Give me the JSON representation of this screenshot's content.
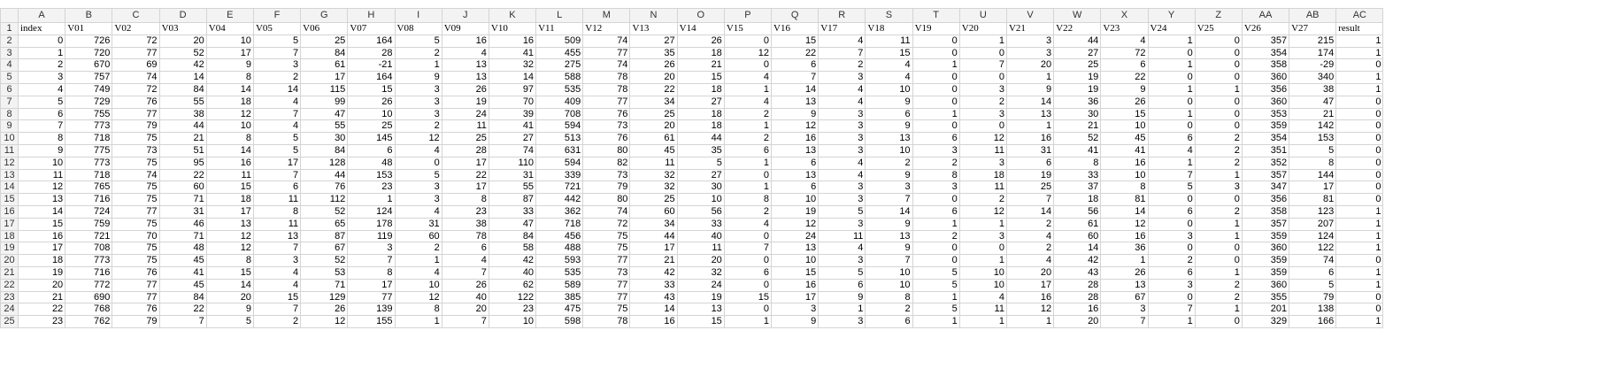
{
  "columns": [
    "A",
    "B",
    "C",
    "D",
    "E",
    "F",
    "G",
    "H",
    "I",
    "J",
    "K",
    "L",
    "M",
    "N",
    "O",
    "P",
    "Q",
    "R",
    "S",
    "T",
    "U",
    "V",
    "W",
    "X",
    "Y",
    "Z",
    "AA",
    "AB",
    "AC"
  ],
  "row_numbers": [
    1,
    2,
    3,
    4,
    5,
    6,
    7,
    8,
    9,
    10,
    11,
    12,
    13,
    14,
    15,
    16,
    17,
    18,
    19,
    20,
    21,
    22,
    23,
    24,
    25
  ],
  "header": [
    "index",
    "V01",
    "V02",
    "V03",
    "V04",
    "V05",
    "V06",
    "V07",
    "V08",
    "V09",
    "V10",
    "V11",
    "V12",
    "V13",
    "V14",
    "V15",
    "V16",
    "V17",
    "V18",
    "V19",
    "V20",
    "V21",
    "V22",
    "V23",
    "V24",
    "V25",
    "V26",
    "V27",
    "result"
  ],
  "rows": [
    [
      0,
      726,
      72,
      20,
      10,
      5,
      25,
      164,
      5,
      16,
      16,
      509,
      74,
      27,
      26,
      0,
      15,
      4,
      11,
      0,
      1,
      3,
      44,
      4,
      1,
      0,
      357,
      215,
      1
    ],
    [
      1,
      720,
      77,
      52,
      17,
      7,
      84,
      28,
      2,
      4,
      41,
      455,
      77,
      35,
      18,
      12,
      22,
      7,
      15,
      0,
      0,
      3,
      27,
      72,
      0,
      0,
      354,
      174,
      1
    ],
    [
      2,
      670,
      69,
      42,
      9,
      3,
      61,
      -21,
      1,
      13,
      32,
      275,
      74,
      26,
      21,
      0,
      6,
      2,
      4,
      1,
      7,
      20,
      25,
      6,
      1,
      0,
      358,
      -29,
      0
    ],
    [
      3,
      757,
      74,
      14,
      8,
      2,
      17,
      164,
      9,
      13,
      14,
      588,
      78,
      20,
      15,
      4,
      7,
      3,
      4,
      0,
      0,
      1,
      19,
      22,
      0,
      0,
      360,
      340,
      1
    ],
    [
      4,
      749,
      72,
      84,
      14,
      14,
      115,
      15,
      3,
      26,
      97,
      535,
      78,
      22,
      18,
      1,
      14,
      4,
      10,
      0,
      3,
      9,
      19,
      9,
      1,
      1,
      356,
      38,
      1
    ],
    [
      5,
      729,
      76,
      55,
      18,
      4,
      99,
      26,
      3,
      19,
      70,
      409,
      77,
      34,
      27,
      4,
      13,
      4,
      9,
      0,
      2,
      14,
      36,
      26,
      0,
      0,
      360,
      47,
      0
    ],
    [
      6,
      755,
      77,
      38,
      12,
      7,
      47,
      10,
      3,
      24,
      39,
      708,
      76,
      25,
      18,
      2,
      9,
      3,
      6,
      1,
      3,
      13,
      30,
      15,
      1,
      0,
      353,
      21,
      0
    ],
    [
      7,
      773,
      79,
      44,
      10,
      4,
      55,
      25,
      2,
      11,
      41,
      594,
      73,
      20,
      18,
      1,
      12,
      3,
      9,
      0,
      0,
      1,
      21,
      10,
      0,
      0,
      359,
      142,
      0
    ],
    [
      8,
      718,
      75,
      21,
      8,
      5,
      30,
      145,
      12,
      25,
      27,
      513,
      76,
      61,
      44,
      2,
      16,
      3,
      13,
      6,
      12,
      16,
      52,
      45,
      6,
      2,
      354,
      153,
      0
    ],
    [
      9,
      775,
      73,
      51,
      14,
      5,
      84,
      6,
      4,
      28,
      74,
      631,
      80,
      45,
      35,
      6,
      13,
      3,
      10,
      3,
      11,
      31,
      41,
      41,
      4,
      2,
      351,
      5,
      0
    ],
    [
      10,
      773,
      75,
      95,
      16,
      17,
      128,
      48,
      0,
      17,
      110,
      594,
      82,
      11,
      5,
      1,
      6,
      4,
      2,
      2,
      3,
      6,
      8,
      16,
      1,
      2,
      352,
      8,
      0
    ],
    [
      11,
      718,
      74,
      22,
      11,
      7,
      44,
      153,
      5,
      22,
      31,
      339,
      73,
      32,
      27,
      0,
      13,
      4,
      9,
      8,
      18,
      19,
      33,
      10,
      7,
      1,
      357,
      144,
      0
    ],
    [
      12,
      765,
      75,
      60,
      15,
      6,
      76,
      23,
      3,
      17,
      55,
      721,
      79,
      32,
      30,
      1,
      6,
      3,
      3,
      3,
      11,
      25,
      37,
      8,
      5,
      3,
      347,
      17,
      0
    ],
    [
      13,
      716,
      75,
      71,
      18,
      11,
      112,
      1,
      3,
      8,
      87,
      442,
      80,
      25,
      10,
      8,
      10,
      3,
      7,
      0,
      2,
      7,
      18,
      81,
      0,
      0,
      356,
      81,
      0
    ],
    [
      14,
      724,
      77,
      31,
      17,
      8,
      52,
      124,
      4,
      23,
      33,
      362,
      74,
      60,
      56,
      2,
      19,
      5,
      14,
      6,
      12,
      14,
      56,
      14,
      6,
      2,
      358,
      123,
      1
    ],
    [
      15,
      759,
      75,
      46,
      13,
      11,
      65,
      178,
      31,
      38,
      47,
      718,
      72,
      34,
      33,
      4,
      12,
      3,
      9,
      1,
      1,
      2,
      61,
      12,
      0,
      1,
      357,
      207,
      1
    ],
    [
      16,
      721,
      70,
      71,
      12,
      13,
      87,
      119,
      60,
      78,
      84,
      456,
      75,
      44,
      40,
      0,
      24,
      11,
      13,
      2,
      3,
      4,
      60,
      16,
      3,
      1,
      359,
      124,
      1
    ],
    [
      17,
      708,
      75,
      48,
      12,
      7,
      67,
      3,
      2,
      6,
      58,
      488,
      75,
      17,
      11,
      7,
      13,
      4,
      9,
      0,
      0,
      2,
      14,
      36,
      0,
      0,
      360,
      122,
      1
    ],
    [
      18,
      773,
      75,
      45,
      8,
      3,
      52,
      7,
      1,
      4,
      42,
      593,
      77,
      21,
      20,
      0,
      10,
      3,
      7,
      0,
      1,
      4,
      42,
      1,
      2,
      0,
      359,
      74,
      0
    ],
    [
      19,
      716,
      76,
      41,
      15,
      4,
      53,
      8,
      4,
      7,
      40,
      535,
      73,
      42,
      32,
      6,
      15,
      5,
      10,
      5,
      10,
      20,
      43,
      26,
      6,
      1,
      359,
      6,
      1
    ],
    [
      20,
      772,
      77,
      45,
      14,
      4,
      71,
      17,
      10,
      26,
      62,
      589,
      77,
      33,
      24,
      0,
      16,
      6,
      10,
      5,
      10,
      17,
      28,
      13,
      3,
      2,
      360,
      5,
      1
    ],
    [
      21,
      690,
      77,
      84,
      20,
      15,
      129,
      77,
      12,
      40,
      122,
      385,
      77,
      43,
      19,
      15,
      17,
      9,
      8,
      1,
      4,
      16,
      28,
      67,
      0,
      2,
      355,
      79,
      0
    ],
    [
      22,
      768,
      76,
      22,
      9,
      7,
      26,
      139,
      8,
      20,
      23,
      475,
      75,
      14,
      13,
      0,
      3,
      1,
      2,
      5,
      11,
      12,
      16,
      3,
      7,
      1,
      201,
      138,
      0
    ],
    [
      23,
      762,
      79,
      7,
      5,
      2,
      12,
      155,
      1,
      7,
      10,
      598,
      78,
      16,
      15,
      1,
      9,
      3,
      6,
      1,
      1,
      1,
      20,
      7,
      1,
      0,
      329,
      166,
      1
    ]
  ]
}
